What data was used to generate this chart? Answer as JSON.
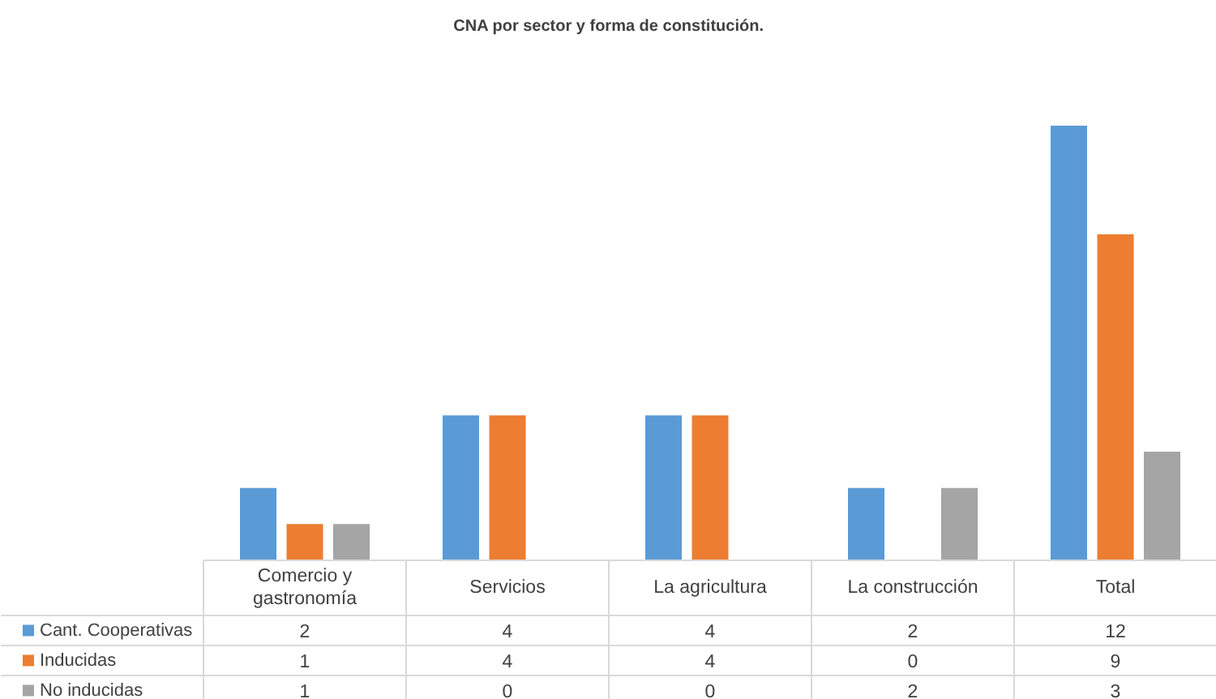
{
  "chart_data": {
    "type": "bar",
    "title": "CNA por sector y forma de constitución.",
    "categories": [
      "Comercio y gastronomía",
      "Servicios",
      "La agricultura",
      "La construcción",
      "Total"
    ],
    "series": [
      {
        "name": "Cant. Cooperativas",
        "color": "#5b9bd5",
        "values": [
          2,
          4,
          4,
          2,
          12
        ]
      },
      {
        "name": "Inducidas",
        "color": "#ed7d31",
        "values": [
          1,
          4,
          4,
          0,
          9
        ]
      },
      {
        "name": "No inducidas",
        "color": "#a5a5a5",
        "values": [
          1,
          0,
          0,
          2,
          3
        ]
      }
    ],
    "data_labels": true,
    "legend": "bottom"
  }
}
